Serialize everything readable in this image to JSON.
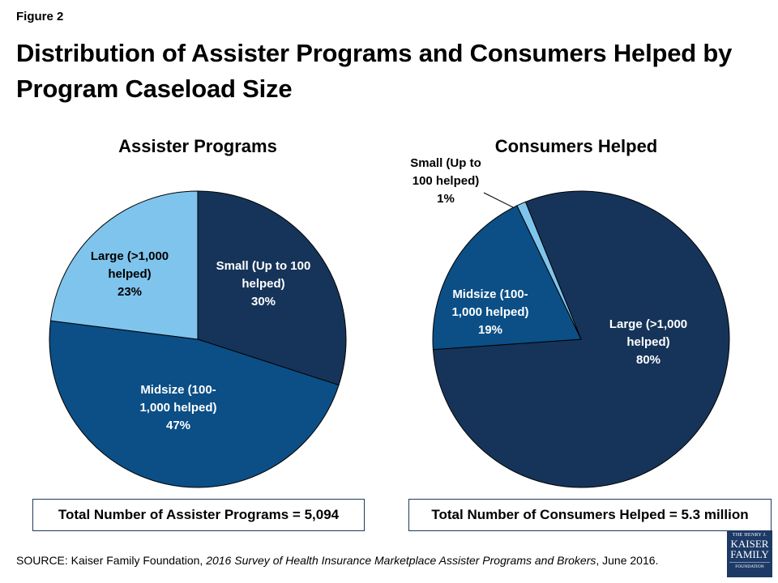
{
  "figure_label": "Figure 2",
  "title": "Distribution of Assister Programs and Consumers Helped by Program Caseload Size",
  "colors": {
    "small": "#163459",
    "midsize": "#0b4f86",
    "large_light": "#7fc4ec",
    "stroke": "#000000"
  },
  "chart_data": [
    {
      "type": "pie",
      "title": "Assister Programs",
      "slices": [
        {
          "label": "Small (Up to 100 helped)",
          "value": 30,
          "display": "30%",
          "color": "#163459",
          "text_color": "#ffffff"
        },
        {
          "label": "Midsize (100-1,000 helped)",
          "value": 47,
          "display": "47%",
          "color": "#0b4f86",
          "text_color": "#ffffff"
        },
        {
          "label": "Large (>1,000 helped)",
          "value": 23,
          "display": "23%",
          "color": "#7fc4ec",
          "text_color": "#000000"
        }
      ],
      "start": "12 o'clock",
      "direction": "clockwise",
      "total_note": "Total Number of Assister Programs = 5,094"
    },
    {
      "type": "pie",
      "title": "Consumers Helped",
      "slices": [
        {
          "label": "Large (>1,000 helped)",
          "value": 80,
          "display": "80%",
          "color": "#163459",
          "text_color": "#ffffff"
        },
        {
          "label": "Midsize (100-1,000 helped)",
          "value": 19,
          "display": "19%",
          "color": "#0b4f86",
          "text_color": "#ffffff"
        },
        {
          "label": "Small (Up to 100 helped)",
          "value": 1,
          "display": "1%",
          "color": "#7fc4ec",
          "text_color": "#000000"
        }
      ],
      "start": "approx. 12 o'clock (offset)",
      "direction": "clockwise",
      "total_note": "Total Number of Consumers Helped = 5.3 million"
    }
  ],
  "labels": {
    "pie1": {
      "small": [
        "Small (Up to 100",
        "helped)",
        "30%"
      ],
      "midsize": [
        "Midsize (100-",
        "1,000 helped)",
        "47%"
      ],
      "large": [
        "Large (>1,000",
        "helped)",
        "23%"
      ]
    },
    "pie2": {
      "small": [
        "Small (Up to",
        "100  helped)",
        "1%"
      ],
      "midsize": [
        "Midsize (100-",
        "1,000 helped)",
        "19%"
      ],
      "large": [
        "Large (>1,000",
        "helped)",
        "80%"
      ]
    }
  },
  "source": {
    "prefix": "SOURCE: Kaiser Family Foundation, ",
    "italic": "2016 Survey of Health Insurance Marketplace Assister Programs and Brokers",
    "suffix": ", June 2016."
  },
  "logo": {
    "line1": "THE HENRY J.",
    "line2": "KAISER",
    "line3": "FAMILY",
    "line4": "FOUNDATION"
  }
}
